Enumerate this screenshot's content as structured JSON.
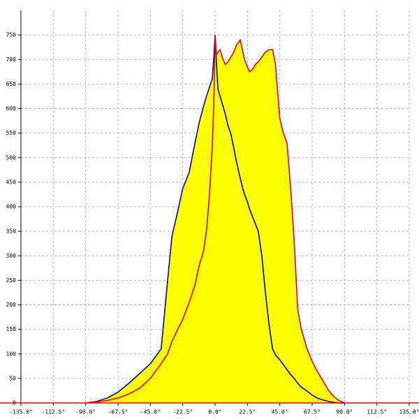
{
  "chart_data": {
    "type": "area",
    "x": [
      -90,
      -82.5,
      -75,
      -67.5,
      -60,
      -52.5,
      -45,
      -37.5,
      -33,
      -30,
      -26,
      -22.5,
      -18,
      -14,
      -11,
      -8,
      -6,
      -4,
      -2,
      -1,
      0,
      1,
      2,
      3.5,
      5,
      7,
      9,
      11,
      13,
      15,
      17.5,
      19,
      20.5,
      22.5,
      24,
      26,
      28,
      30,
      32.5,
      35,
      37.5,
      40,
      42,
      45,
      47.5,
      50,
      52.5,
      55,
      57.5,
      60,
      64,
      67.5,
      71,
      75,
      79,
      83,
      86,
      90
    ],
    "series": [
      {
        "color": "#0000c8",
        "fill": "#ffff00",
        "values": [
          0,
          3,
          10,
          22,
          40,
          60,
          80,
          110,
          250,
          340,
          390,
          437,
          470,
          530,
          572,
          605,
          625,
          643,
          660,
          700,
          750,
          690,
          640,
          625,
          610,
          590,
          565,
          548,
          520,
          490,
          458,
          440,
          425,
          410,
          395,
          380,
          365,
          350,
          300,
          225,
          160,
          110,
          98,
          88,
          78,
          68,
          58,
          50,
          40,
          32,
          24,
          16,
          10,
          6,
          3,
          1,
          0,
          0
        ]
      },
      {
        "color": "#e00000",
        "fill": "#ffff00",
        "values": [
          0,
          2,
          5,
          10,
          18,
          30,
          50,
          80,
          100,
          125,
          150,
          170,
          205,
          240,
          280,
          310,
          350,
          420,
          520,
          600,
          750,
          710,
          715,
          720,
          705,
          690,
          695,
          705,
          715,
          730,
          740,
          720,
          700,
          685,
          675,
          680,
          690,
          695,
          705,
          715,
          720,
          720,
          690,
          580,
          550,
          530,
          440,
          330,
          190,
          150,
          110,
          85,
          65,
          45,
          25,
          12,
          5,
          0
        ]
      }
    ],
    "xlim": [
      -135,
      135
    ],
    "ylim": [
      0,
      800
    ],
    "xticks": [
      {
        "value": -135,
        "label": "-135.0°"
      },
      {
        "value": -112.5,
        "label": "-112.5°"
      },
      {
        "value": -90,
        "label": "-90.0°"
      },
      {
        "value": -67.5,
        "label": "-67.5°"
      },
      {
        "value": -45,
        "label": "-45.0°"
      },
      {
        "value": -22.5,
        "label": "-22.5°"
      },
      {
        "value": 0,
        "label": "0.0°"
      },
      {
        "value": 22.5,
        "label": "22.5°"
      },
      {
        "value": 45,
        "label": "45.0°"
      },
      {
        "value": 67.5,
        "label": "67.5°"
      },
      {
        "value": 90,
        "label": "90.0°"
      },
      {
        "value": 112.5,
        "label": "112.5°"
      },
      {
        "value": 135,
        "label": "135.0°"
      }
    ],
    "yticks": [
      0,
      50,
      100,
      150,
      200,
      250,
      300,
      350,
      400,
      450,
      500,
      550,
      600,
      650,
      700,
      750
    ],
    "grid": true
  }
}
